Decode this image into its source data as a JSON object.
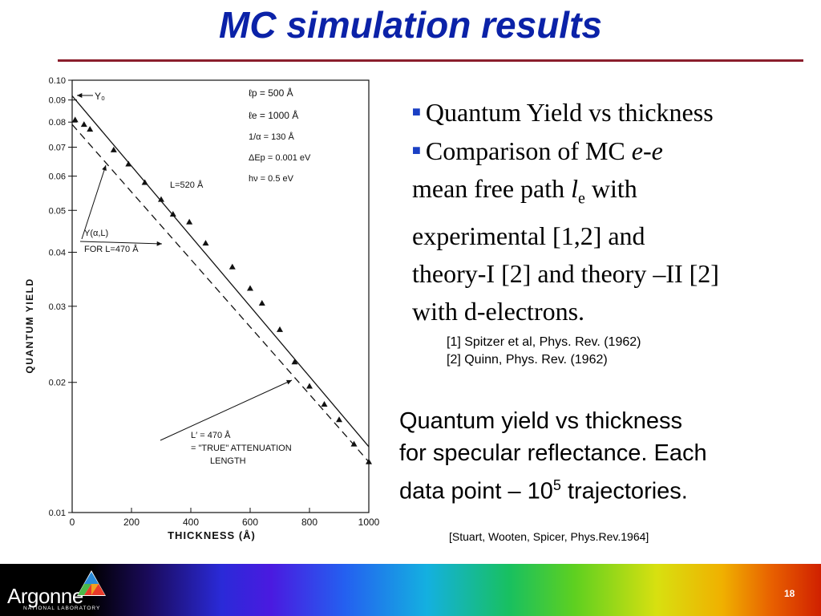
{
  "slide": {
    "title": "MC simulation results",
    "page_number": "18"
  },
  "bullets": {
    "b1": "Quantum Yield vs thickness",
    "b2_prefix": "Comparison of MC ",
    "b2_ee": "e-e",
    "b2_line2": "mean free path ",
    "b2_l": "l",
    "b2_sub": "e",
    "b2_with": " with",
    "b2_line3": "experimental [1,2] and",
    "b2_line4": "theory-I [2] and theory –II [2]",
    "b2_line5": "with d-electrons."
  },
  "refs": {
    "r1": "[1] Spitzer et al, Phys. Rev. (1962)",
    "r2": "[2] Quinn, Phys. Rev. (1962)"
  },
  "caption": {
    "line1": "Quantum yield vs thickness",
    "line2": "for specular reflectance. Each",
    "line3_prefix": "data point – 10",
    "line3_sup": "5",
    "line3_suffix": " trajectories."
  },
  "citation": "[Stuart, Wooten, Spicer, Phys.Rev.1964]",
  "footer": {
    "logo_name": "Argonne",
    "logo_sub": "NATIONAL LABORATORY"
  },
  "colors": {
    "title": "#0b22a8",
    "rule": "#8b1e2c",
    "bullet_marker": "#1a3fc4"
  },
  "chart_data": {
    "type": "scatter",
    "y_scale": "log",
    "xlim": [
      0,
      1000
    ],
    "ylim": [
      0.01,
      0.1
    ],
    "xlabel": "THICKNESS (Å)",
    "ylabel": "QUANTUM YIELD",
    "x_ticks": [
      "0",
      "200",
      "400",
      "600",
      "800",
      "1000"
    ],
    "y_ticks": [
      "0.10",
      "0.09",
      "0.08",
      "0.07",
      "0.06",
      "0.05",
      "0.04",
      "0.03",
      "0.02",
      "0.01"
    ],
    "y_tick_values": [
      0.1,
      0.09,
      0.08,
      0.07,
      0.06,
      0.05,
      0.04,
      0.03,
      0.02,
      0.01
    ],
    "parameters": [
      "ℓp = 500 Å",
      "ℓe = 1000 Å",
      "1/α = 130 Å",
      "ΔEp = 0.001 eV",
      "hν = 0.5 eV"
    ],
    "annotations": {
      "y0": "Y₀",
      "L_fit": "L=520 Å",
      "yal_1": "Y(α,L)",
      "yal_2": "FOR L=470 Å",
      "lprime_1": "L′ = 470 Å",
      "lprime_2": "= \"TRUE\" ATTENUATION",
      "lprime_3": "LENGTH"
    },
    "points": [
      {
        "x": 10,
        "y": 0.081
      },
      {
        "x": 40,
        "y": 0.079
      },
      {
        "x": 60,
        "y": 0.077
      },
      {
        "x": 140,
        "y": 0.069
      },
      {
        "x": 190,
        "y": 0.064
      },
      {
        "x": 245,
        "y": 0.058
      },
      {
        "x": 300,
        "y": 0.053
      },
      {
        "x": 340,
        "y": 0.049
      },
      {
        "x": 395,
        "y": 0.047
      },
      {
        "x": 450,
        "y": 0.042
      },
      {
        "x": 540,
        "y": 0.037
      },
      {
        "x": 600,
        "y": 0.033
      },
      {
        "x": 640,
        "y": 0.0305
      },
      {
        "x": 700,
        "y": 0.0265
      },
      {
        "x": 750,
        "y": 0.0223
      },
      {
        "x": 800,
        "y": 0.0196
      },
      {
        "x": 850,
        "y": 0.0178
      },
      {
        "x": 900,
        "y": 0.0164
      },
      {
        "x": 950,
        "y": 0.0144
      },
      {
        "x": 1000,
        "y": 0.0131
      }
    ],
    "solid_line": [
      [
        0,
        0.092
      ],
      [
        1000,
        0.0142
      ]
    ],
    "dashed_line": [
      [
        0,
        0.079
      ],
      [
        1000,
        0.0131
      ]
    ]
  }
}
